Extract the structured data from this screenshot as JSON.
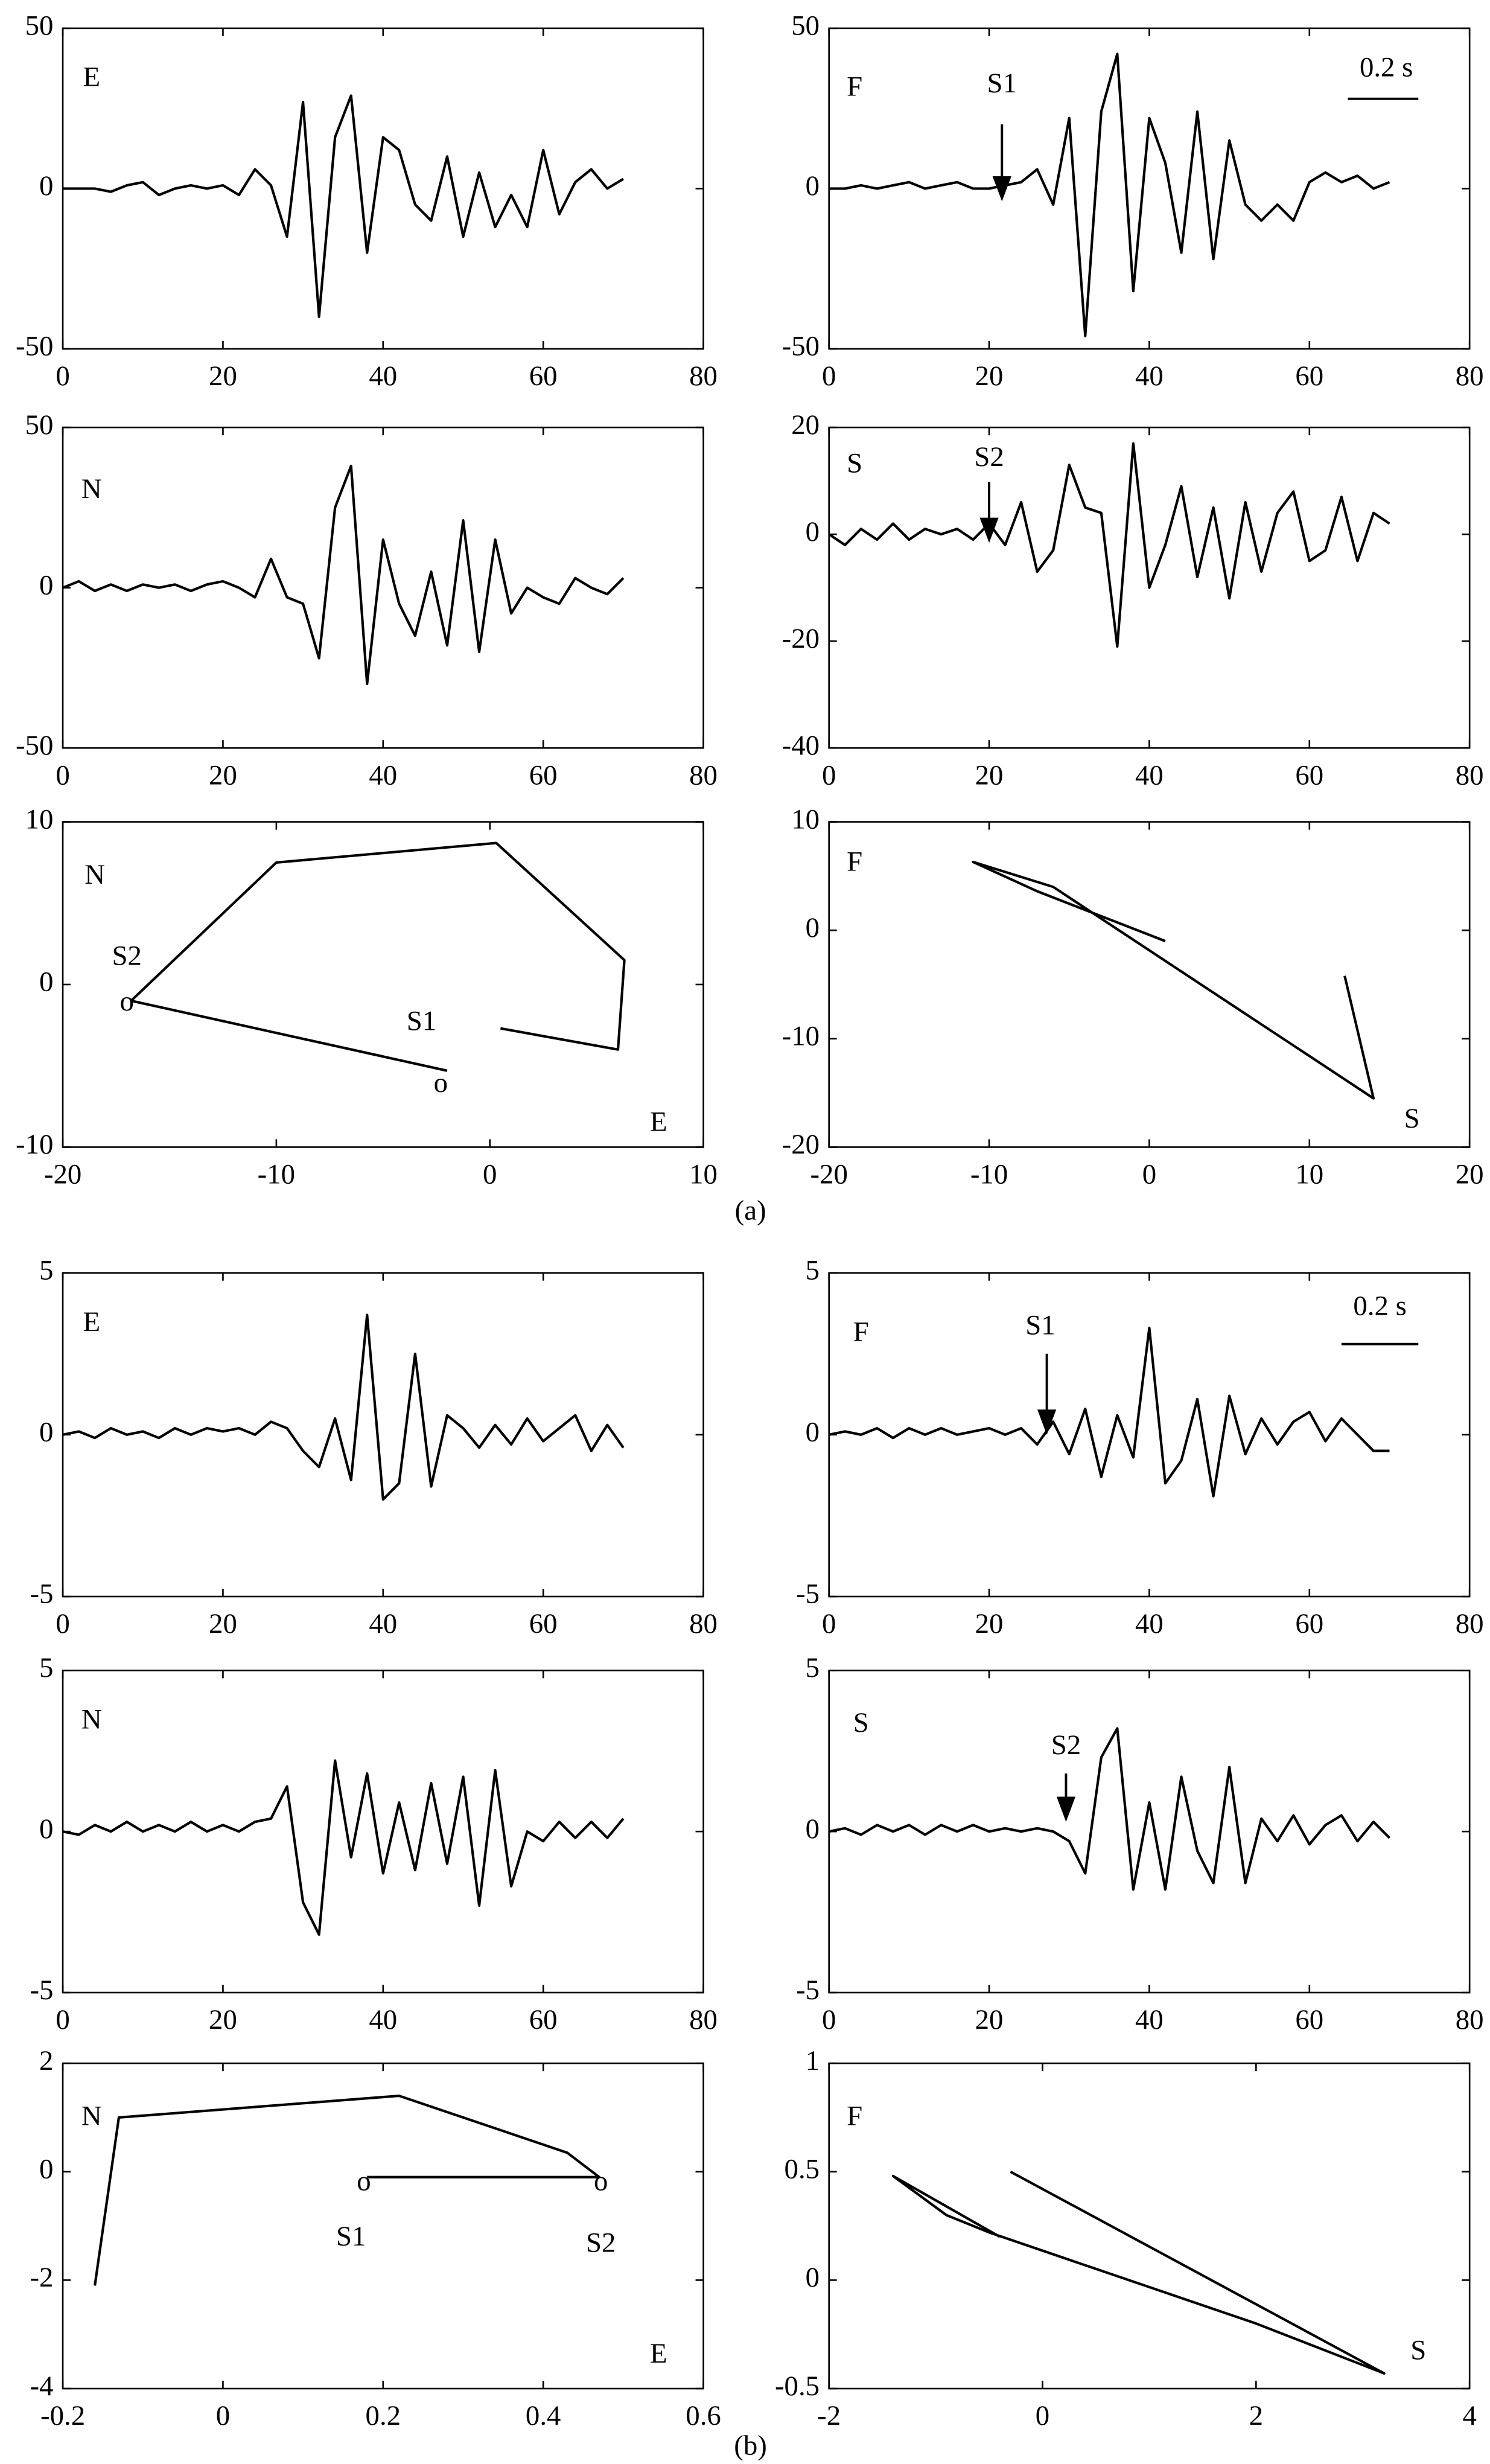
{
  "chart_data": [
    {
      "type": "line",
      "x": [
        0,
        2,
        4,
        6,
        8,
        10,
        12,
        14,
        16,
        18,
        20,
        22,
        24,
        26,
        28,
        30,
        32,
        34,
        36,
        38,
        40,
        42,
        44,
        46,
        48,
        50,
        52,
        54,
        56,
        58,
        60,
        62,
        64,
        66,
        68,
        70
      ],
      "values": [
        0,
        0,
        0,
        -1,
        1,
        2,
        -2,
        0,
        1,
        0,
        1,
        -2,
        6,
        1,
        -15,
        27,
        -40,
        16,
        29,
        -20,
        16,
        12,
        -5,
        -10,
        10,
        -15,
        5,
        -12,
        -2,
        -12,
        12,
        -8,
        2,
        6,
        0,
        3
      ],
      "xlim": [
        0,
        80
      ],
      "ylim": [
        -50,
        50
      ],
      "xticks": [
        0,
        20,
        40,
        60,
        80
      ],
      "yticks": [
        -50,
        0,
        50
      ],
      "color": "#000000",
      "annotations": [
        "E"
      ]
    },
    {
      "type": "line",
      "x": [
        0,
        2,
        4,
        6,
        8,
        10,
        12,
        14,
        16,
        18,
        20,
        22,
        24,
        26,
        28,
        30,
        32,
        34,
        36,
        38,
        40,
        42,
        44,
        46,
        48,
        50,
        52,
        54,
        56,
        58,
        60,
        62,
        64,
        66,
        68,
        70
      ],
      "values": [
        0,
        0,
        1,
        0,
        1,
        2,
        0,
        1,
        2,
        0,
        0,
        1,
        2,
        6,
        -5,
        22,
        -46,
        24,
        42,
        -32,
        22,
        8,
        -20,
        24,
        -22,
        15,
        -5,
        -10,
        -5,
        -10,
        2,
        5,
        2,
        4,
        0,
        2
      ],
      "xlim": [
        0,
        80
      ],
      "ylim": [
        -50,
        50
      ],
      "xticks": [
        0,
        20,
        40,
        60,
        80
      ],
      "yticks": [
        -50,
        0,
        50
      ],
      "color": "#000000",
      "annotations": [
        "F",
        "S1",
        "0.2 s"
      ]
    },
    {
      "type": "line",
      "x": [
        0,
        2,
        4,
        6,
        8,
        10,
        12,
        14,
        16,
        18,
        20,
        22,
        24,
        26,
        28,
        30,
        32,
        34,
        36,
        38,
        40,
        42,
        44,
        46,
        48,
        50,
        52,
        54,
        56,
        58,
        60,
        62,
        64,
        66,
        68,
        70
      ],
      "values": [
        0,
        2,
        -1,
        1,
        -1,
        1,
        0,
        1,
        -1,
        1,
        2,
        0,
        -3,
        9,
        -3,
        -5,
        -22,
        25,
        38,
        -30,
        15,
        -5,
        -15,
        5,
        -18,
        21,
        -20,
        15,
        -8,
        0,
        -3,
        -5,
        3,
        0,
        -2,
        3
      ],
      "xlim": [
        0,
        80
      ],
      "ylim": [
        -50,
        50
      ],
      "xticks": [
        0,
        20,
        40,
        60,
        80
      ],
      "yticks": [
        -50,
        0,
        50
      ],
      "color": "#000000",
      "annotations": [
        "N"
      ]
    },
    {
      "type": "line",
      "x": [
        0,
        2,
        4,
        6,
        8,
        10,
        12,
        14,
        16,
        18,
        20,
        22,
        24,
        26,
        28,
        30,
        32,
        34,
        36,
        38,
        40,
        42,
        44,
        46,
        48,
        50,
        52,
        54,
        56,
        58,
        60,
        62,
        64,
        66,
        68,
        70
      ],
      "values": [
        0,
        -2,
        1,
        -1,
        2,
        -1,
        1,
        0,
        1,
        -1,
        2,
        -2,
        6,
        -7,
        -3,
        13,
        5,
        4,
        -21,
        17,
        -10,
        -2,
        9,
        -8,
        5,
        -12,
        6,
        -7,
        4,
        8,
        -5,
        -3,
        7,
        -5,
        4,
        2
      ],
      "xlim": [
        0,
        80
      ],
      "ylim": [
        -40,
        20
      ],
      "xticks": [
        0,
        20,
        40,
        60,
        80
      ],
      "yticks": [
        -40,
        -20,
        0,
        20
      ],
      "color": "#000000",
      "annotations": [
        "S",
        "S2"
      ]
    },
    {
      "type": "line",
      "x": [
        0.5,
        6,
        6.3,
        0.3,
        -10,
        -16.8,
        -2
      ],
      "values": [
        -2.7,
        -4,
        1.5,
        8.7,
        7.5,
        -1,
        -5.3
      ],
      "xlim": [
        -20,
        10
      ],
      "ylim": [
        -10,
        10
      ],
      "xticks": [
        -20,
        -10,
        0,
        10
      ],
      "yticks": [
        -10,
        0,
        10
      ],
      "color": "#000000",
      "annotations": [
        "N",
        "S2",
        "o",
        "S1",
        "o",
        "E"
      ]
    },
    {
      "type": "line",
      "x": [
        1,
        -7,
        -11,
        -6,
        14,
        12.2
      ],
      "values": [
        -1,
        3.6,
        6.3,
        4,
        -15.5,
        -4.2
      ],
      "xlim": [
        -20,
        20
      ],
      "ylim": [
        -20,
        10
      ],
      "xticks": [
        -20,
        -10,
        0,
        10,
        20
      ],
      "yticks": [
        -20,
        -10,
        0,
        10
      ],
      "color": "#000000",
      "annotations": [
        "F",
        "S"
      ]
    },
    {
      "type": "line",
      "x": [
        0,
        2,
        4,
        6,
        8,
        10,
        12,
        14,
        16,
        18,
        20,
        22,
        24,
        26,
        28,
        30,
        32,
        34,
        36,
        38,
        40,
        42,
        44,
        46,
        48,
        50,
        52,
        54,
        56,
        58,
        60,
        62,
        64,
        66,
        68,
        70
      ],
      "values": [
        0,
        0.1,
        -0.1,
        0.2,
        0,
        0.1,
        -0.1,
        0.2,
        0,
        0.2,
        0.1,
        0.2,
        0,
        0.4,
        0.2,
        -0.5,
        -1,
        0.5,
        -1.4,
        3.7,
        -2,
        -1.5,
        2.5,
        -1.6,
        0.6,
        0.2,
        -0.4,
        0.3,
        -0.3,
        0.5,
        -0.2,
        0.2,
        0.6,
        -0.5,
        0.3,
        -0.4
      ],
      "xlim": [
        0,
        80
      ],
      "ylim": [
        -5,
        5
      ],
      "xticks": [
        0,
        20,
        40,
        60,
        80
      ],
      "yticks": [
        -5,
        0,
        5
      ],
      "color": "#000000",
      "annotations": [
        "E"
      ]
    },
    {
      "type": "line",
      "x": [
        0,
        2,
        4,
        6,
        8,
        10,
        12,
        14,
        16,
        18,
        20,
        22,
        24,
        26,
        28,
        30,
        32,
        34,
        36,
        38,
        40,
        42,
        44,
        46,
        48,
        50,
        52,
        54,
        56,
        58,
        60,
        62,
        64,
        66,
        68,
        70
      ],
      "values": [
        0,
        0.1,
        0,
        0.2,
        -0.1,
        0.2,
        0,
        0.2,
        0,
        0.1,
        0.2,
        0,
        0.2,
        -0.3,
        0.4,
        -0.6,
        0.8,
        -1.3,
        0.6,
        -0.7,
        3.3,
        -1.5,
        -0.8,
        1.1,
        -1.9,
        1.2,
        -0.6,
        0.5,
        -0.3,
        0.4,
        0.7,
        -0.2,
        0.5,
        0,
        -0.5,
        -0.5
      ],
      "xlim": [
        0,
        80
      ],
      "ylim": [
        -5,
        5
      ],
      "xticks": [
        0,
        20,
        40,
        60,
        80
      ],
      "yticks": [
        -5,
        0,
        5
      ],
      "color": "#000000",
      "annotations": [
        "F",
        "S1",
        "0.2 s"
      ]
    },
    {
      "type": "line",
      "x": [
        0,
        2,
        4,
        6,
        8,
        10,
        12,
        14,
        16,
        18,
        20,
        22,
        24,
        26,
        28,
        30,
        32,
        34,
        36,
        38,
        40,
        42,
        44,
        46,
        48,
        50,
        52,
        54,
        56,
        58,
        60,
        62,
        64,
        66,
        68,
        70
      ],
      "values": [
        0,
        -0.1,
        0.2,
        0,
        0.3,
        0,
        0.2,
        0,
        0.3,
        0,
        0.2,
        0,
        0.3,
        0.4,
        1.4,
        -2.2,
        -3.2,
        2.2,
        -0.8,
        1.8,
        -1.3,
        0.9,
        -1.2,
        1.5,
        -1,
        1.7,
        -2.3,
        1.9,
        -1.7,
        0,
        -0.3,
        0.3,
        -0.2,
        0.3,
        -0.2,
        0.4
      ],
      "xlim": [
        0,
        80
      ],
      "ylim": [
        -5,
        5
      ],
      "xticks": [
        0,
        20,
        40,
        60,
        80
      ],
      "yticks": [
        -5,
        0,
        5
      ],
      "color": "#000000",
      "annotations": [
        "N"
      ]
    },
    {
      "type": "line",
      "x": [
        0,
        2,
        4,
        6,
        8,
        10,
        12,
        14,
        16,
        18,
        20,
        22,
        24,
        26,
        28,
        30,
        32,
        34,
        36,
        38,
        40,
        42,
        44,
        46,
        48,
        50,
        52,
        54,
        56,
        58,
        60,
        62,
        64,
        66,
        68,
        70
      ],
      "values": [
        0,
        0.1,
        -0.1,
        0.2,
        0,
        0.2,
        -0.1,
        0.2,
        0,
        0.2,
        0,
        0.1,
        0,
        0.1,
        0,
        -0.3,
        -1.3,
        2.3,
        3.2,
        -1.8,
        0.9,
        -1.8,
        1.7,
        -0.6,
        -1.6,
        2,
        -1.6,
        0.4,
        -0.3,
        0.5,
        -0.4,
        0.2,
        0.5,
        -0.3,
        0.3,
        -0.2
      ],
      "xlim": [
        0,
        80
      ],
      "ylim": [
        -5,
        5
      ],
      "xticks": [
        0,
        20,
        40,
        60,
        80
      ],
      "yticks": [
        -5,
        0,
        5
      ],
      "color": "#000000",
      "annotations": [
        "S",
        "S2"
      ]
    },
    {
      "type": "line",
      "x": [
        -0.16,
        -0.13,
        0.22,
        0.43,
        0.47,
        0.18
      ],
      "values": [
        -2.1,
        1,
        1.4,
        0.35,
        -0.1,
        -0.1
      ],
      "xlim": [
        -0.2,
        0.6
      ],
      "ylim": [
        -4,
        2
      ],
      "xticks": [
        -0.2,
        0,
        0.2,
        0.4,
        0.6
      ],
      "yticks": [
        -4,
        -2,
        0,
        2
      ],
      "color": "#000000",
      "annotations": [
        "N",
        "o",
        "S1",
        "o",
        "S2",
        "E"
      ]
    },
    {
      "type": "line",
      "x": [
        -0.4,
        -1.4,
        -0.9,
        -0.5,
        2,
        3.2,
        -0.3
      ],
      "values": [
        0.2,
        0.48,
        0.3,
        0.22,
        -0.2,
        -0.43,
        0.5
      ],
      "xlim": [
        -2,
        4
      ],
      "ylim": [
        -0.5,
        1
      ],
      "xticks": [
        -2,
        0,
        2,
        4
      ],
      "yticks": [
        -0.5,
        0,
        0.5,
        1
      ],
      "color": "#000000",
      "annotations": [
        "F",
        "S"
      ]
    }
  ],
  "figure_labels": [
    "(a)",
    "(b)"
  ]
}
